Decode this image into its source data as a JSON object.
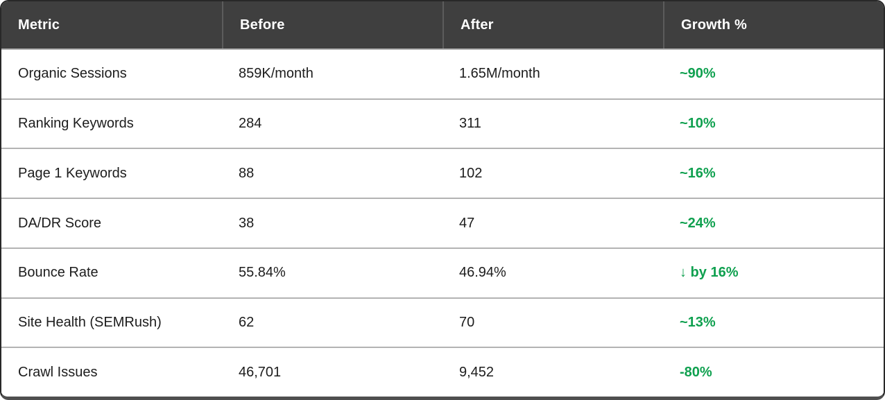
{
  "chart_data": {
    "type": "table",
    "columns": [
      "Metric",
      "Before",
      "After",
      "Growth %"
    ],
    "rows": [
      [
        "Organic Sessions",
        "859K/month",
        "1.65M/month",
        "~90%"
      ],
      [
        "Ranking Keywords",
        "284",
        "311",
        "~10%"
      ],
      [
        "Page 1 Keywords",
        "88",
        "102",
        "~16%"
      ],
      [
        "DA/DR Score",
        "38",
        "47",
        "~24%"
      ],
      [
        "Bounce Rate",
        "55.84%",
        "46.94%",
        "↓ by 16%"
      ],
      [
        "Site Health (SEMRush)",
        "62",
        "70",
        "~13%"
      ],
      [
        "Crawl Issues",
        "46,701",
        "9,452",
        "-80%"
      ]
    ],
    "title": "",
    "legend": "none",
    "grid": "horizontal-row-dividers"
  },
  "colors": {
    "header_bg": "#3f3f3f",
    "header_text": "#ffffff",
    "header_divider": "#5c5c5c",
    "row_divider": "#b3b3b3",
    "outer_border": "#282828",
    "bottom_border": "#4f4f4f",
    "body_text": "#1c1c1c",
    "growth_green": "#0fa04f"
  }
}
